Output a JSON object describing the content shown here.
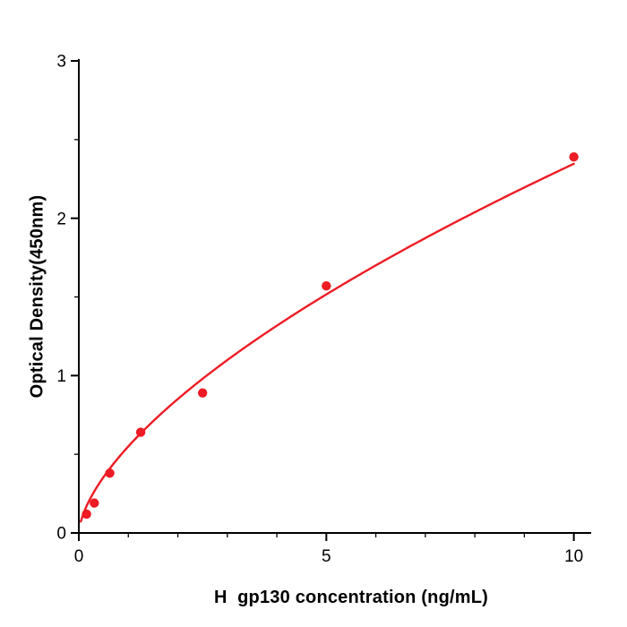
{
  "figure": {
    "background": "#ffffff"
  },
  "chart_data": {
    "type": "scatter",
    "title": "",
    "xlabel": "H  gp130 concentration (ng/mL)",
    "ylabel": "Optical Density(450nm)",
    "xlim": [
      0,
      10.35
    ],
    "ylim": [
      0,
      3
    ],
    "x_major_ticks": [
      0,
      5,
      10
    ],
    "x_minor_ticks": [
      1,
      2,
      3,
      4,
      6,
      7,
      8,
      9
    ],
    "y_major_ticks": [
      0,
      1,
      2,
      3
    ],
    "y_minor_ticks": [
      0.5,
      1.5,
      2.5
    ],
    "x": [
      0.156,
      0.313,
      0.625,
      1.25,
      2.5,
      5,
      10
    ],
    "y": [
      0.12,
      0.19,
      0.38,
      0.64,
      0.89,
      1.57,
      2.39
    ],
    "fit": {
      "type": "power",
      "a": 0.55,
      "b": 0.63,
      "x_start": 0.04,
      "x_end": 10
    },
    "point_color": "#ed1c24",
    "line_color": "#ed1c24",
    "axis_color": "#000000",
    "grid": false,
    "legend_position": "none"
  }
}
